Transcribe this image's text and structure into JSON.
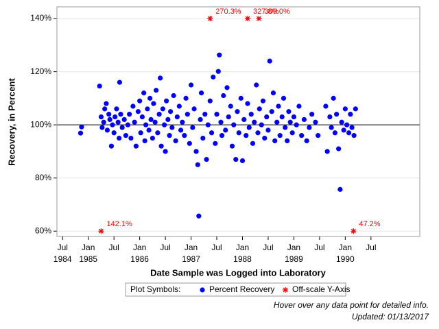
{
  "chart_data": {
    "type": "scatter",
    "xlabel": "Date Sample was Logged into Laboratory",
    "ylabel": "Recovery, in Percent",
    "xlim": [
      1984.39,
      1991.45
    ],
    "ylim": [
      58,
      144.4
    ],
    "xticks": [
      {
        "value": 1984.5,
        "label": "Jul"
      },
      {
        "value": 1985,
        "label": "Jan"
      },
      {
        "value": 1985.5,
        "label": "Jul"
      },
      {
        "value": 1986,
        "label": "Jan"
      },
      {
        "value": 1986.5,
        "label": "Jul"
      },
      {
        "value": 1987,
        "label": "Jan"
      },
      {
        "value": 1987.5,
        "label": "Jul"
      },
      {
        "value": 1988,
        "label": "Jan"
      },
      {
        "value": 1988.5,
        "label": "Jul"
      },
      {
        "value": 1989,
        "label": "Jan"
      },
      {
        "value": 1989.5,
        "label": "Jul"
      },
      {
        "value": 1990,
        "label": "Jan"
      },
      {
        "value": 1990.5,
        "label": "Jul"
      }
    ],
    "xtick_years": [
      {
        "value": 1984.5,
        "label": "1984"
      },
      {
        "value": 1985,
        "label": "1985"
      },
      {
        "value": 1986,
        "label": "1986"
      },
      {
        "value": 1987,
        "label": "1987"
      },
      {
        "value": 1988,
        "label": "1988"
      },
      {
        "value": 1989,
        "label": "1989"
      },
      {
        "value": 1990,
        "label": "1990"
      }
    ],
    "yticks": [
      {
        "value": 60,
        "label": "60%"
      },
      {
        "value": 80,
        "label": "80%"
      },
      {
        "value": 100,
        "label": "100%"
      },
      {
        "value": 120,
        "label": "120%"
      },
      {
        "value": 140,
        "label": "140%"
      }
    ],
    "grid": true,
    "ref_line": 100,
    "legend_title": "Plot Symbols:",
    "series": [
      {
        "name": "Percent Recovery",
        "color": "#0000ff",
        "x": [
          1984.85,
          1984.87,
          1985.22,
          1985.25,
          1985.27,
          1985.3,
          1985.32,
          1985.35,
          1985.37,
          1985.4,
          1985.42,
          1985.45,
          1985.47,
          1985.5,
          1985.52,
          1985.55,
          1985.58,
          1985.6,
          1985.61,
          1985.63,
          1985.66,
          1985.7,
          1985.73,
          1985.77,
          1985.8,
          1985.83,
          1985.87,
          1985.9,
          1985.93,
          1985.97,
          1986.0,
          1986.02,
          1986.05,
          1986.08,
          1986.1,
          1986.12,
          1986.15,
          1986.18,
          1986.2,
          1986.22,
          1986.25,
          1986.27,
          1986.3,
          1986.32,
          1986.35,
          1986.38,
          1986.4,
          1986.42,
          1986.45,
          1986.48,
          1986.5,
          1986.52,
          1986.55,
          1986.58,
          1986.6,
          1986.63,
          1986.66,
          1986.7,
          1986.73,
          1986.77,
          1986.8,
          1986.83,
          1986.87,
          1986.9,
          1986.93,
          1986.97,
          1987.0,
          1987.03,
          1987.06,
          1987.1,
          1987.13,
          1987.15,
          1987.18,
          1987.2,
          1987.23,
          1987.27,
          1987.3,
          1987.33,
          1987.37,
          1987.4,
          1987.43,
          1987.47,
          1987.5,
          1987.53,
          1987.55,
          1987.58,
          1987.6,
          1987.63,
          1987.67,
          1987.7,
          1987.73,
          1987.77,
          1987.8,
          1987.83,
          1987.87,
          1987.9,
          1987.93,
          1987.97,
          1988.0,
          1988.03,
          1988.07,
          1988.1,
          1988.13,
          1988.17,
          1988.2,
          1988.23,
          1988.27,
          1988.3,
          1988.33,
          1988.37,
          1988.4,
          1988.43,
          1988.47,
          1988.5,
          1988.53,
          1988.57,
          1988.6,
          1988.63,
          1988.67,
          1988.7,
          1988.73,
          1988.77,
          1988.8,
          1988.83,
          1988.87,
          1988.9,
          1988.93,
          1988.97,
          1989.0,
          1989.05,
          1989.1,
          1989.15,
          1989.2,
          1989.25,
          1989.3,
          1989.35,
          1989.42,
          1989.47,
          1989.62,
          1989.65,
          1989.7,
          1989.73,
          1989.77,
          1989.8,
          1989.83,
          1989.87,
          1989.9,
          1989.93,
          1989.97,
          1990.0,
          1990.03,
          1990.07,
          1990.1,
          1990.13,
          1990.17,
          1990.2
        ],
        "values": [
          96.9,
          99.2,
          114.6,
          103,
          99,
          101,
          106,
          108,
          98,
          104,
          102,
          92,
          100,
          97,
          103,
          106,
          101,
          95,
          116,
          104,
          99,
          102,
          96,
          100,
          104,
          95,
          107,
          101,
          92,
          105,
          109,
          97,
          103,
          112,
          94,
          100,
          106,
          98,
          110,
          102,
          95,
          108,
          101,
          113,
          97,
          104,
          117.6,
          92,
          106,
          100,
          90,
          109,
          102,
          96,
          105,
          99,
          111,
          94,
          103,
          107,
          98,
          101,
          96,
          110,
          104,
          93,
          115,
          99,
          106,
          90,
          85,
          65.7,
          102,
          112,
          95,
          104,
          87,
          100,
          109,
          97,
          118,
          93,
          104,
          120.1,
          126.3,
          101,
          96,
          111,
          98,
          114,
          103,
          107,
          92,
          100,
          87,
          105,
          97,
          110,
          86.5,
          102,
          96,
          108,
          99,
          104,
          93,
          101,
          115,
          97,
          106,
          100,
          109,
          95,
          103,
          98,
          124,
          105,
          112,
          94,
          101,
          107,
          96,
          103,
          110,
          99,
          94,
          105,
          101,
          97,
          103,
          100,
          107,
          96,
          102,
          94,
          99,
          104,
          101,
          96,
          107,
          90,
          103,
          99,
          110,
          97,
          104,
          91,
          75.7,
          101,
          98,
          106,
          100,
          97,
          104,
          99,
          96,
          106
        ]
      },
      {
        "name": "Off-scale Y-Axis",
        "color": "#ff0000",
        "x": [
          1985.25,
          1987.37,
          1988.1,
          1988.32,
          1990.16
        ],
        "values": [
          142.1,
          270.3,
          327.8,
          309.0,
          47.2
        ],
        "value_labels": [
          "142.1%",
          "270.3%",
          "327.8%",
          "309.0%",
          "47.2%"
        ]
      }
    ],
    "notes": [
      "Hover over any data point for detailed info.",
      "Updated: 01/13/2017"
    ]
  }
}
